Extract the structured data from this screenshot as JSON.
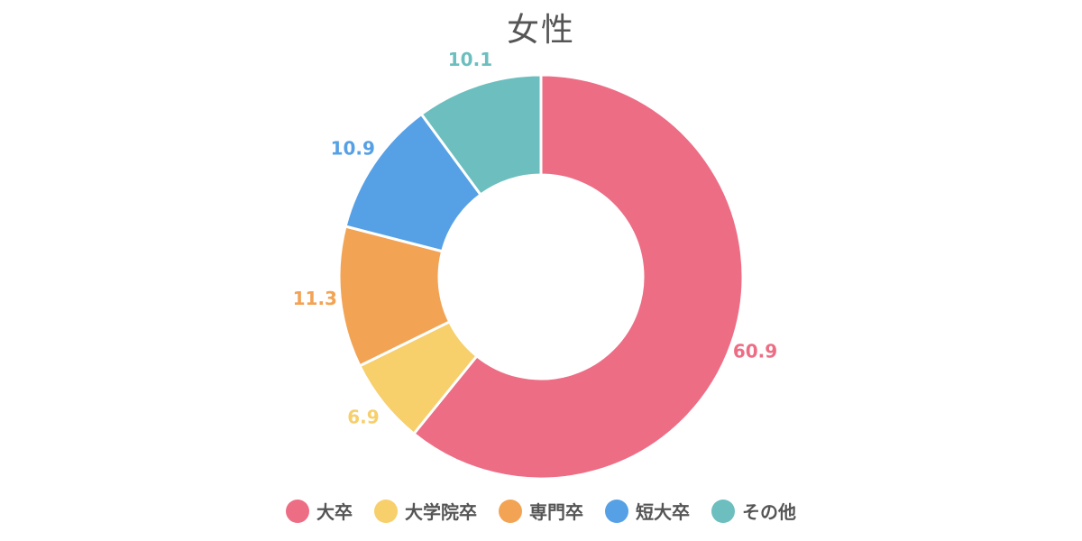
{
  "title": "女性",
  "chart_data": {
    "type": "pie",
    "title": "女性",
    "categories": [
      "大卒",
      "大学院卒",
      "専門卒",
      "短大卒",
      "その他"
    ],
    "values": [
      60.9,
      6.9,
      11.3,
      10.9,
      10.1
    ],
    "value_labels": [
      "60.9",
      "6.9",
      "11.3",
      "10.9",
      "10.1"
    ],
    "colors": [
      "#ED6D85",
      "#F7CF6B",
      "#F2A354",
      "#56A0E5",
      "#6CBEBF"
    ],
    "donut": true,
    "legend_position": "bottom"
  }
}
